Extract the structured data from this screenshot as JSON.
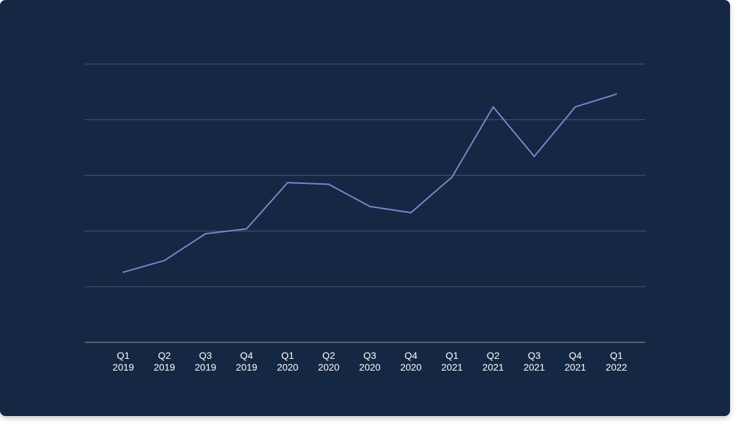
{
  "chart_data": {
    "type": "line",
    "title": "",
    "xlabel": "",
    "ylabel": "",
    "categories": [
      [
        "Q1",
        "2019"
      ],
      [
        "Q2",
        "2019"
      ],
      [
        "Q3",
        "2019"
      ],
      [
        "Q4",
        "2019"
      ],
      [
        "Q1",
        "2020"
      ],
      [
        "Q2",
        "2020"
      ],
      [
        "Q3",
        "2020"
      ],
      [
        "Q4",
        "2020"
      ],
      [
        "Q1",
        "2021"
      ],
      [
        "Q2",
        "2021"
      ],
      [
        "Q3",
        "2021"
      ],
      [
        "Q4",
        "2021"
      ],
      [
        "Q1",
        "2022"
      ]
    ],
    "series": [
      {
        "values": [
          12.6,
          14.7,
          19.5,
          20.4,
          28.7,
          28.4,
          24.4,
          23.3,
          29.7,
          42.3,
          33.4,
          42.3,
          44.6
        ]
      }
    ],
    "ylim": [
      0,
      50
    ],
    "y_gridlines": [
      10,
      20,
      30,
      40,
      50
    ],
    "y_tick_labels_shown": false,
    "grid": true,
    "legend": "none",
    "colors": {
      "background": "#142843",
      "line": "#7b87d1",
      "grid": "#4a5a72",
      "axis": "#6b778a",
      "text": "#ffffff"
    }
  }
}
